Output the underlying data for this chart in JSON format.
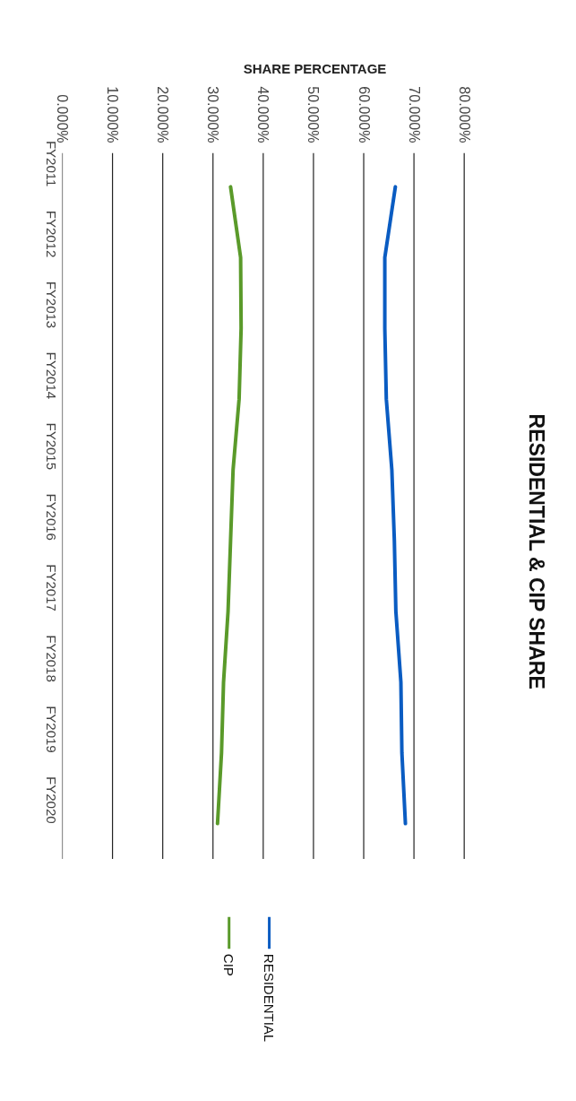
{
  "chart_data": {
    "type": "line",
    "title": "RESIDENTIAL & CIP SHARE",
    "xlabel": "SHARE PERCENTAGE",
    "orientation": "horizontal",
    "categories": [
      "FY2011",
      "FY2012",
      "FY2013",
      "FY2014",
      "FY2015",
      "FY2016",
      "FY2017",
      "FY2018",
      "FY2019",
      "FY2020"
    ],
    "series": [
      {
        "name": "RESIDENTIAL",
        "color": "#0a5cc2",
        "values": [
          66.3,
          64.2,
          64.2,
          64.5,
          65.6,
          66.1,
          66.4,
          67.4,
          67.6,
          68.3
        ]
      },
      {
        "name": "CIP",
        "color": "#5a9a2a",
        "values": [
          33.5,
          35.5,
          35.6,
          35.2,
          34.0,
          33.5,
          33.0,
          32.1,
          31.7,
          30.9
        ]
      }
    ],
    "xlim": [
      0,
      80
    ],
    "xticks": [
      {
        "value": 0,
        "label": "0.000%"
      },
      {
        "value": 10,
        "label": "10.000%"
      },
      {
        "value": 20,
        "label": "20.000%"
      },
      {
        "value": 30,
        "label": "30.000%"
      },
      {
        "value": 40,
        "label": "40.000%"
      },
      {
        "value": 50,
        "label": "50.000%"
      },
      {
        "value": 60,
        "label": "60.000%"
      },
      {
        "value": 70,
        "label": "70.000%"
      },
      {
        "value": 80,
        "label": "80.000%"
      }
    ],
    "grid": "x",
    "legend": "bottom",
    "marker": "none",
    "line_style": "solid"
  }
}
